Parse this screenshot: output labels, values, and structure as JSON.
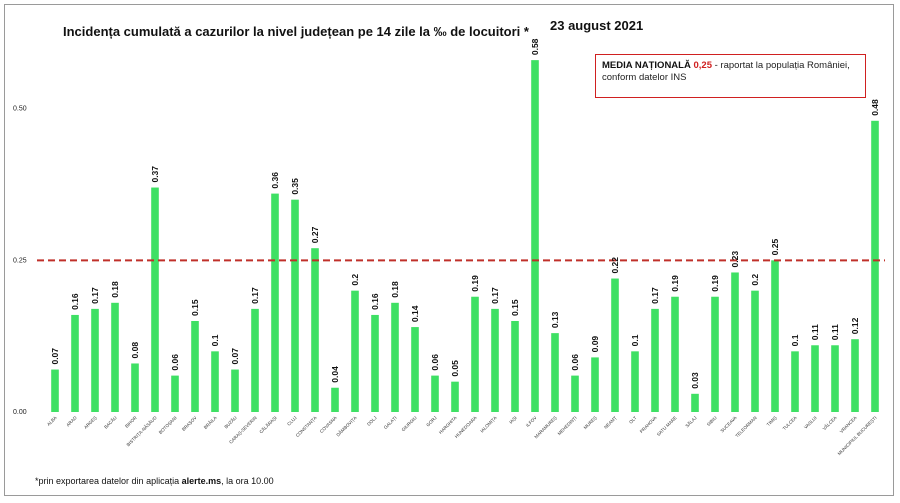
{
  "chart_data": {
    "type": "bar",
    "title": "Incidența cumulată a cazurilor la nivel județean pe 14 zile la ‰ de locuitori *",
    "date_label": "23 august 2021",
    "categories": [
      "ALBA",
      "ARAD",
      "ARGEȘ",
      "BACĂU",
      "BIHOR",
      "BISTRIȚA-NĂSĂUD",
      "BOTOȘANI",
      "BRAȘOV",
      "BRĂILA",
      "BUZĂU",
      "CARAȘ-SEVERIN",
      "CĂLĂRAȘI",
      "CLUJ",
      "CONSTANȚA",
      "COVASNA",
      "DÂMBOVIȚA",
      "DOLJ",
      "GALAȚI",
      "GIURGIU",
      "GORJ",
      "HARGHITA",
      "HUNEDOARA",
      "IALOMIȚA",
      "IAȘI",
      "ILFOV",
      "MARAMUREȘ",
      "MEHEDINȚI",
      "MUREȘ",
      "NEAMȚ",
      "OLT",
      "PRAHOVA",
      "SATU MARE",
      "SĂLAJ",
      "SIBIU",
      "SUCEAVA",
      "TELEORMAN",
      "TIMIȘ",
      "TULCEA",
      "VASLUI",
      "VÂLCEA",
      "VRANCEA",
      "MUNICIPIUL BUCUREȘTI"
    ],
    "values": [
      0.07,
      0.16,
      0.17,
      0.18,
      0.08,
      0.37,
      0.06,
      0.15,
      0.1,
      0.07,
      0.17,
      0.36,
      0.35,
      0.27,
      0.04,
      0.2,
      0.16,
      0.18,
      0.14,
      0.06,
      0.05,
      0.19,
      0.17,
      0.15,
      0.58,
      0.13,
      0.06,
      0.09,
      0.22,
      0.1,
      0.17,
      0.19,
      0.03,
      0.19,
      0.23,
      0.2,
      0.25,
      0.1,
      0.11,
      0.11,
      0.12,
      0.48
    ],
    "value_labels": [
      "0.07",
      "0.16",
      "0.17",
      "0.18",
      "0.08",
      "0.37",
      "0.06",
      "0.15",
      "0.1",
      "0.07",
      "0.17",
      "0.36",
      "0.35",
      "0.27",
      "0.04",
      "0.2",
      "0.16",
      "0.18",
      "0.14",
      "0.06",
      "0.05",
      "0.19",
      "0.17",
      "0.15",
      "0.58",
      "0.13",
      "0.06",
      "0.09",
      "0.22",
      "0.1",
      "0.17",
      "0.19",
      "0.03",
      "0.19",
      "0.23",
      "0.2",
      "0.25",
      "0.1",
      "0.11",
      "0.11",
      "0.12",
      "0.48"
    ],
    "yticks": [
      0,
      0.25,
      0.5
    ],
    "ytick_labels": [
      "0.00",
      "0.25",
      "0.50"
    ],
    "ylim": [
      0,
      0.6
    ],
    "reference_line": 0.25,
    "bar_color": "#3ee064",
    "reference_color": "#c0302a",
    "grid": false,
    "legend": {
      "bold": "MEDIA NAȚIONALĂ",
      "value": "0,25",
      "rest": " - raportat la populația României,",
      "line2": "conform datelor INS"
    },
    "footnote": {
      "prefix": "*prin exportarea datelor din aplicația ",
      "bold": "alerte.ms",
      "suffix": ", la ora 10.00"
    }
  }
}
